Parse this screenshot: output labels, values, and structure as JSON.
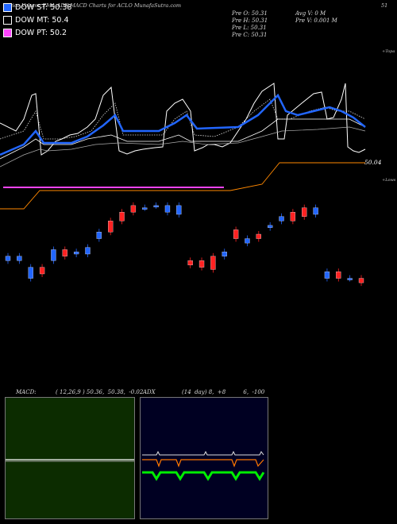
{
  "header": {
    "title": "Price,Volume,EMA,ADX,MACD Charts for ACLO MunafaSutra.com",
    "top_right": "51"
  },
  "legend": [
    {
      "label": "DOW ST: 50.38",
      "color": "#2266ff"
    },
    {
      "label": "DOW MT: 50.4",
      "color": "#000000"
    },
    {
      "label": "DOW PT: 50.2",
      "color": "#ff44ff"
    }
  ],
  "ohlc": {
    "col1": [
      "Pre  O: 50.31",
      "Pre  H: 50.31",
      "Pre  L: 50.31",
      "Pre  C: 50.31"
    ],
    "col2": [
      "Avg V: 0  M",
      "Pre   V: 0.001 M"
    ]
  },
  "right_labels": {
    "topa": "+Topa",
    "price": "50.04",
    "lows": "+Lows"
  },
  "chart_data": {
    "type": "candlestick",
    "title": "Price,Volume,EMA,ADX,MACD Charts for ACLO MunafaSutra.com",
    "price_axis_label": "51",
    "last_price_label": "50.04",
    "candles": [
      {
        "o": 50.2,
        "c": 50.22,
        "up": false
      },
      {
        "o": 50.22,
        "c": 50.2,
        "up": false
      },
      {
        "o": 50.12,
        "c": 50.17,
        "up": false
      },
      {
        "o": 50.17,
        "c": 50.14,
        "up": true
      },
      {
        "o": 50.2,
        "c": 50.25,
        "up": false
      },
      {
        "o": 50.25,
        "c": 50.22,
        "up": true
      },
      {
        "o": 50.24,
        "c": 50.23,
        "up": false
      },
      {
        "o": 50.26,
        "c": 50.23,
        "up": false
      },
      {
        "o": 50.3,
        "c": 50.33,
        "up": false
      },
      {
        "o": 50.33,
        "c": 50.38,
        "up": true
      },
      {
        "o": 50.38,
        "c": 50.42,
        "up": true
      },
      {
        "o": 50.42,
        "c": 50.45,
        "up": true
      },
      {
        "o": 50.44,
        "c": 50.44,
        "up": false
      },
      {
        "o": 50.45,
        "c": 50.45,
        "up": false
      },
      {
        "o": 50.45,
        "c": 50.42,
        "up": false
      },
      {
        "o": 50.45,
        "c": 50.41,
        "up": false
      },
      {
        "o": 50.18,
        "c": 50.2,
        "up": true
      },
      {
        "o": 50.2,
        "c": 50.17,
        "up": true
      },
      {
        "o": 50.16,
        "c": 50.22,
        "up": true
      },
      {
        "o": 50.22,
        "c": 50.24,
        "up": false
      },
      {
        "o": 50.34,
        "c": 50.3,
        "up": true
      },
      {
        "o": 50.3,
        "c": 50.28,
        "up": false
      },
      {
        "o": 50.3,
        "c": 50.32,
        "up": true
      },
      {
        "o": 50.36,
        "c": 50.35,
        "up": false
      },
      {
        "o": 50.4,
        "c": 50.38,
        "up": false
      },
      {
        "o": 50.42,
        "c": 50.38,
        "up": true
      },
      {
        "o": 50.4,
        "c": 50.44,
        "up": true
      },
      {
        "o": 50.44,
        "c": 50.41,
        "up": false
      },
      {
        "o": 50.12,
        "c": 50.15,
        "up": false
      },
      {
        "o": 50.15,
        "c": 50.12,
        "up": true
      },
      {
        "o": 50.12,
        "c": 50.12,
        "up": false
      },
      {
        "o": 50.1,
        "c": 50.12,
        "up": true
      }
    ],
    "series": [
      {
        "name": "DOW ST",
        "values": [
          50.38
        ]
      },
      {
        "name": "DOW MT",
        "values": [
          50.4
        ]
      },
      {
        "name": "DOW PT",
        "values": [
          50.2
        ]
      }
    ]
  },
  "macd": {
    "label": "MACD:",
    "values": "( 12,26,9 ) 50.36,  50.38,  -0.02"
  },
  "adx": {
    "label": "ADX",
    "values": "(14  day) 8,  +8          6,  -100"
  },
  "colors": {
    "up": "#ff2222",
    "down": "#2266ff",
    "ema_st": "#2266ff",
    "ema_pt": "#ff44ff",
    "macd_bg": "#0c2c00",
    "adx_bg": "#000022"
  }
}
